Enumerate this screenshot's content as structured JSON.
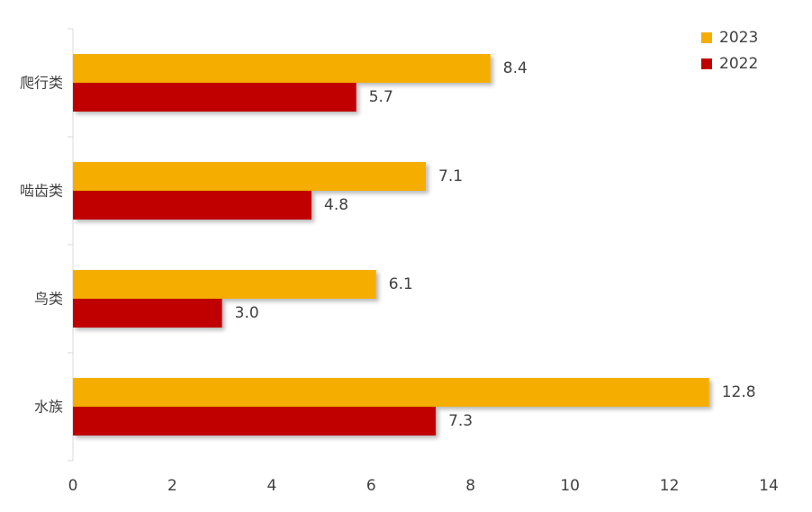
{
  "chart_data": {
    "type": "bar",
    "orientation": "horizontal",
    "categories": [
      "爬行类",
      "啮齿类",
      "鸟类",
      "水族"
    ],
    "series": [
      {
        "name": "2023",
        "values": [
          8.4,
          7.1,
          6.1,
          12.8
        ],
        "labels": [
          "8.4",
          "7.1",
          "6.1",
          "12.8"
        ],
        "color": "#F5AE00"
      },
      {
        "name": "2022",
        "values": [
          5.7,
          4.8,
          3.0,
          7.3
        ],
        "labels": [
          "5.7",
          "4.8",
          "3.0",
          "7.3"
        ],
        "color": "#C00000"
      }
    ],
    "xlim": [
      0,
      14
    ],
    "x_ticks": [
      "0",
      "2",
      "4",
      "6",
      "8",
      "10",
      "12",
      "14"
    ],
    "grid": false,
    "legend": "top-right",
    "title": "",
    "xlabel": "",
    "ylabel": ""
  }
}
